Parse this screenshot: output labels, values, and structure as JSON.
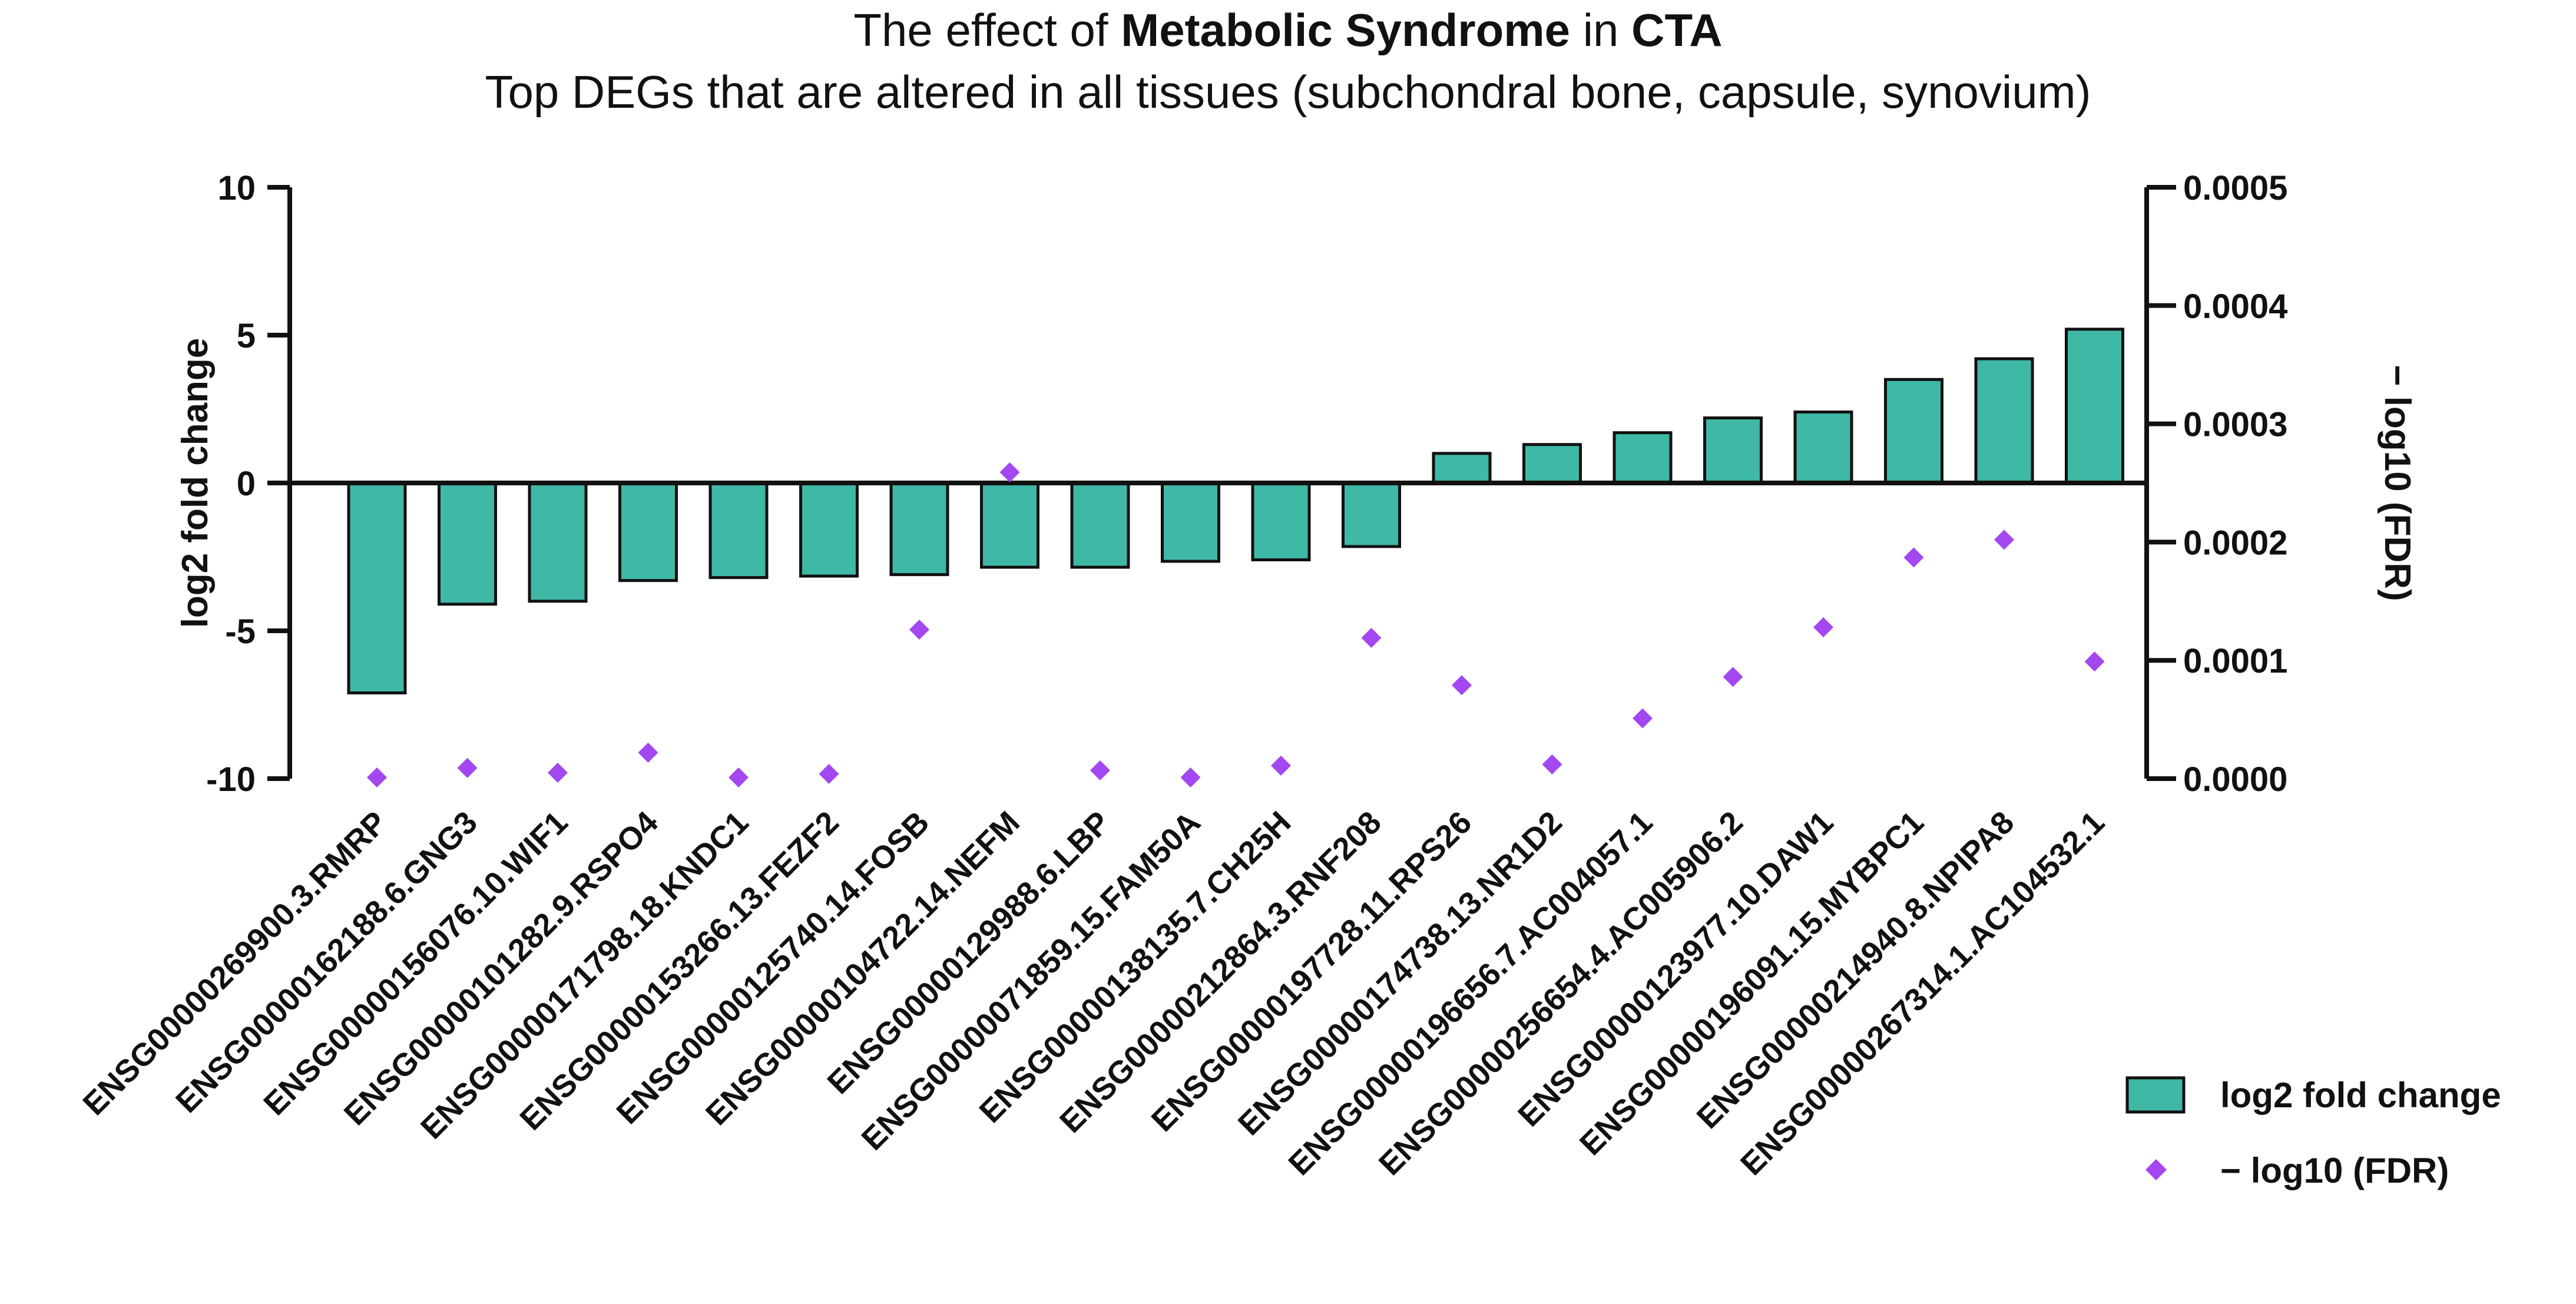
{
  "chart_data": {
    "type": "bar",
    "title": {
      "line1": [
        {
          "text": "The effect of ",
          "bold": false
        },
        {
          "text": "Metabolic Syndrome",
          "bold": true
        },
        {
          "text": " in ",
          "bold": false
        },
        {
          "text": "CTA",
          "bold": true
        }
      ],
      "line2": "Top DEGs that are altered in all tissues (subchondral bone, capsule, synovium)"
    },
    "ylabel_left": "log2 fold change",
    "ylabel_right": "− log10 (FDR)",
    "ylim_left": [
      -10,
      10
    ],
    "yticks_left": [
      "10",
      "5",
      "0",
      "-5",
      "-10"
    ],
    "yticks_left_values": [
      10,
      5,
      0,
      -5,
      -10
    ],
    "ylim_right": [
      0,
      0.0005
    ],
    "yticks_right": [
      "0.0005",
      "0.0004",
      "0.0003",
      "0.0002",
      "0.0001",
      "0.0000"
    ],
    "yticks_right_values": [
      0.0005,
      0.0004,
      0.0003,
      0.0002,
      0.0001,
      0
    ],
    "categories": [
      "ENSG00000269900.3.RMRP",
      "ENSG00000162188.6.GNG3",
      "ENSG00000156076.10.WIF1",
      "ENSG00000101282.9.RSPO4",
      "ENSG00000171798.18.KNDC1",
      "ENSG00000153266.13.FEZF2",
      "ENSG00000125740.14.FOSB",
      "ENSG00000104722.14.NEFM",
      "ENSG00000129988.6.LBP",
      "ENSG00000071859.15.FAM50A",
      "ENSG00000138135.7.CH25H",
      "ENSG00000212864.3.RNF208",
      "ENSG00000197728.11.RPS26",
      "ENSG00000174738.13.NR1D2",
      "ENSG00000196656.7.AC004057.1",
      "ENSG00000256654.4.AC005906.2",
      "ENSG00000123977.10.DAW1",
      "ENSG00000196091.15.MYBPC1",
      "ENSG00000214940.8.NPIPA8",
      "ENSG00000267314.1.AC104532.1"
    ],
    "series": [
      {
        "name": "log2 fold change",
        "type": "bar",
        "axis": "left",
        "color": "#3fb8a6",
        "values": [
          -7.1,
          -4.1,
          -4.0,
          -3.3,
          -3.2,
          -3.15,
          -3.1,
          -2.85,
          -2.85,
          -2.65,
          -2.6,
          -2.15,
          1.0,
          1.3,
          1.7,
          2.2,
          2.4,
          3.5,
          4.2,
          5.2
        ]
      },
      {
        "name": "− log10 (FDR)",
        "type": "scatter",
        "axis": "right",
        "color": "#a347f0",
        "values": [
          1e-06,
          9e-06,
          5e-06,
          2.2e-05,
          1e-06,
          4e-06,
          0.000126,
          0.000259,
          7e-06,
          1e-06,
          1.1e-05,
          0.000119,
          7.9e-05,
          1.2e-05,
          5.1e-05,
          8.6e-05,
          0.000128,
          0.000187,
          0.000202,
          9.9e-05
        ]
      }
    ],
    "legend": {
      "position": "bottom-right",
      "items": [
        {
          "label": "log2 fold change",
          "marker": "bar"
        },
        {
          "label": "− log10 (FDR)",
          "marker": "diamond"
        }
      ]
    },
    "grid": false
  }
}
